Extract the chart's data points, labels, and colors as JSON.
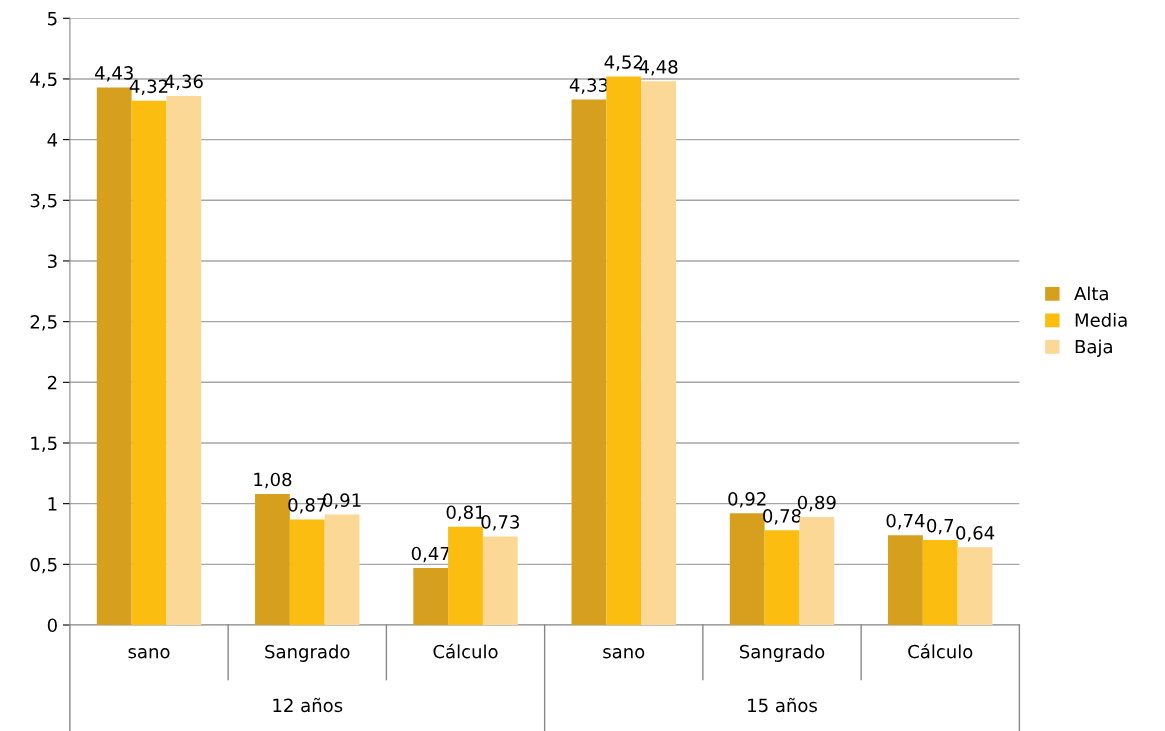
{
  "chart_data": {
    "type": "bar",
    "categories": [
      "sano",
      "Sangrado",
      "Cálculo",
      "sano",
      "Sangrado",
      "Cálculo"
    ],
    "series": [
      {
        "name": "Alta",
        "color": "#d6a01e",
        "values": [
          4.43,
          1.08,
          0.47,
          4.33,
          0.92,
          0.74
        ],
        "value_labels": [
          "4,43",
          "1,08",
          "0,47",
          "4,33",
          "0,92",
          "0,74"
        ]
      },
      {
        "name": "Media",
        "color": "#fbbe10",
        "values": [
          4.32,
          0.87,
          0.81,
          4.52,
          0.78,
          0.7
        ],
        "value_labels": [
          "4,32",
          "0,87",
          "0,81",
          "4,52",
          "0,78",
          "0,7"
        ]
      },
      {
        "name": "Baja",
        "color": "#fcd896",
        "values": [
          4.36,
          0.91,
          0.73,
          4.48,
          0.89,
          0.64
        ],
        "value_labels": [
          "4,36",
          "0,91",
          "0,73",
          "4,48",
          "0,89",
          "0,64"
        ]
      }
    ],
    "annotations": [
      "12 años",
      "15 años"
    ],
    "ylim": [
      0,
      5
    ],
    "yticks": [
      0,
      {
        "value": 0.5,
        "label": "0,5"
      },
      1,
      {
        "value": 1.5,
        "label": "1,5"
      },
      2,
      {
        "value": 2.5,
        "label": "2,5"
      },
      3,
      {
        "value": 3.5,
        "label": "3,5"
      },
      4,
      {
        "value": 4.5,
        "label": "4,5"
      },
      5
    ],
    "grid": "y",
    "legend": "right"
  }
}
